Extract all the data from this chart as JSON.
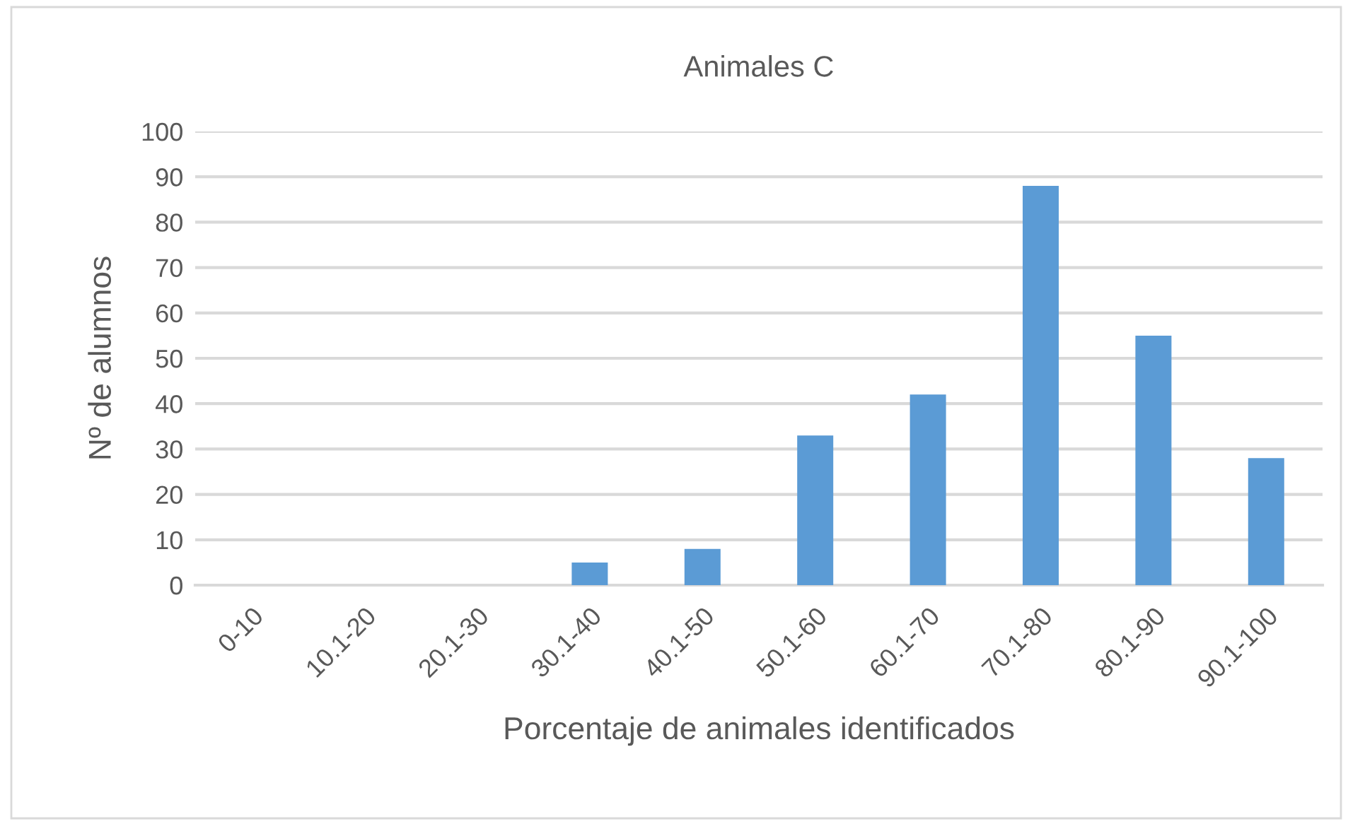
{
  "chart_data": {
    "type": "bar",
    "title": "Animales C",
    "xlabel": "Porcentaje de animales identificados",
    "ylabel": "Nº de alumnos",
    "categories": [
      "0-10",
      "10.1-20",
      "20.1-30",
      "30.1-40",
      "40.1-50",
      "50.1-60",
      "60.1-70",
      "70.1-80",
      "80.1-90",
      "90.1-100"
    ],
    "values": [
      0,
      0,
      0,
      5,
      8,
      33,
      42,
      88,
      55,
      28
    ],
    "color": "#5b9bd5",
    "ylim": [
      0,
      100
    ],
    "yticks": [
      0,
      10,
      20,
      30,
      40,
      50,
      60,
      70,
      80,
      90,
      100
    ],
    "grid": "y",
    "legend": false
  }
}
